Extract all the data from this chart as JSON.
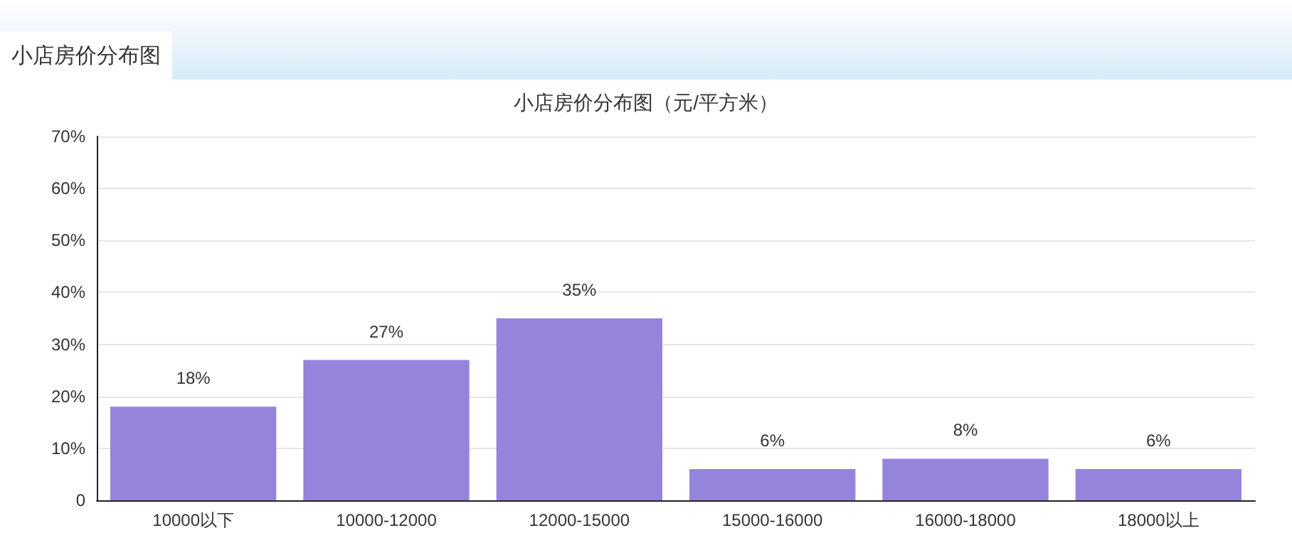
{
  "chart_data": {
    "type": "bar",
    "title": "小店房价分布图",
    "subtitle": "小店房价分布图（元/平方米）",
    "categories": [
      "10000以下",
      "10000-12000",
      "12000-15000",
      "15000-16000",
      "16000-18000",
      "18000以上"
    ],
    "values": [
      18,
      27,
      35,
      6,
      8,
      6
    ],
    "value_labels": [
      "18%",
      "27%",
      "35%",
      "6%",
      "8%",
      "6%"
    ],
    "color": "#9683dc",
    "ylim": [
      0,
      70
    ],
    "yticks": [
      {
        "value": 0,
        "label": "0"
      },
      {
        "value": 10,
        "label": "10%"
      },
      {
        "value": 20,
        "label": "20%"
      },
      {
        "value": 30,
        "label": "30%"
      },
      {
        "value": 40,
        "label": "40%"
      },
      {
        "value": 50,
        "label": "50%"
      },
      {
        "value": 60,
        "label": "60%"
      },
      {
        "value": 70,
        "label": "70%"
      }
    ],
    "grid": "y"
  }
}
